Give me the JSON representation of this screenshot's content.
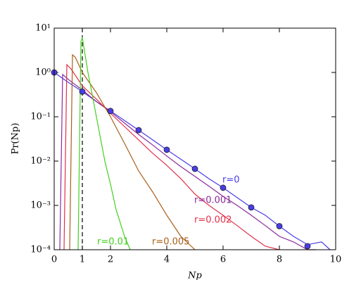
{
  "chart_data": {
    "type": "line",
    "xlabel": "Np",
    "ylabel": "Pr(Np)",
    "xlim": [
      0,
      10
    ],
    "ylim": [
      0.0001,
      10
    ],
    "log_y": true,
    "xticks": [
      0,
      1,
      2,
      4,
      6,
      8,
      10
    ],
    "yticks": [
      {
        "value": 0.0001,
        "label": "10⁻⁴"
      },
      {
        "value": 0.001,
        "label": "10⁻³"
      },
      {
        "value": 0.01,
        "label": "10⁻²"
      },
      {
        "value": 0.1,
        "label": "10⁻¹"
      },
      {
        "value": 1,
        "label": "10⁰"
      },
      {
        "value": 10,
        "label": "10¹"
      }
    ],
    "vline": {
      "x": 1,
      "color": "#000000"
    },
    "series": [
      {
        "name": "r=0",
        "color": "#4a3ce8",
        "x": [
          0,
          0.5,
          1,
          1.5,
          2,
          2.5,
          3,
          3.5,
          4,
          4.5,
          5,
          5.5,
          6,
          6.5,
          7,
          7.5,
          8,
          8.5,
          9,
          9.5,
          9.8
        ],
        "values": [
          1,
          0.6,
          0.37,
          0.22,
          0.135,
          0.082,
          0.05,
          0.03,
          0.018,
          0.011,
          0.0067,
          0.004,
          0.0025,
          0.0015,
          0.0009,
          0.0006,
          0.00034,
          0.0002,
          0.00013,
          0.00015,
          0.0001
        ]
      },
      {
        "name": "r=0.001",
        "color": "#8a2a9a",
        "x": [
          0.2,
          0.3,
          0.5,
          1,
          1.5,
          2,
          2.5,
          3,
          3.5,
          4,
          4.5,
          5,
          5.5,
          6,
          6.5,
          7,
          7.5,
          8,
          8.5,
          9,
          9.3
        ],
        "values": [
          0.0001,
          0.9,
          0.7,
          0.4,
          0.22,
          0.13,
          0.072,
          0.04,
          0.023,
          0.013,
          0.0075,
          0.0045,
          0.0027,
          0.0016,
          0.001,
          0.0006,
          0.00035,
          0.0002,
          0.00015,
          0.0001,
          0.0001
        ]
      },
      {
        "name": "r=0.002",
        "color": "#e0304a",
        "x": [
          0.35,
          0.45,
          0.6,
          1,
          1.5,
          2,
          2.5,
          3,
          3.5,
          4,
          4.5,
          5,
          5.5,
          6,
          6.5,
          7,
          7.5,
          8
        ],
        "values": [
          0.0001,
          1.5,
          1.2,
          0.5,
          0.25,
          0.12,
          0.06,
          0.03,
          0.015,
          0.008,
          0.004,
          0.0018,
          0.001,
          0.0006,
          0.00035,
          0.0002,
          0.00012,
          0.0001
        ]
      },
      {
        "name": "r=0.005",
        "color": "#a8601a",
        "x": [
          0.55,
          0.65,
          0.75,
          1,
          1.5,
          2,
          2.5,
          3,
          3.5,
          4,
          4.5,
          5
        ],
        "values": [
          0.0001,
          2.5,
          2.2,
          1,
          0.35,
          0.1,
          0.025,
          0.006,
          0.002,
          0.0006,
          0.0002,
          0.0001
        ]
      },
      {
        "name": "r=0.01",
        "color": "#44d020",
        "x": [
          0.85,
          0.95,
          1,
          1.2,
          1.5,
          1.8,
          2,
          2.2,
          2.5,
          2.7
        ],
        "values": [
          0.0001,
          5,
          6,
          1,
          0.1,
          0.01,
          0.003,
          0.0008,
          0.0002,
          0.0001
        ]
      }
    ],
    "points": {
      "color": "#4a3ce8",
      "x": [
        0,
        1,
        2,
        3,
        4,
        5,
        6,
        7,
        8,
        9
      ],
      "values": [
        1,
        0.37,
        0.135,
        0.05,
        0.018,
        0.0067,
        0.0025,
        0.0009,
        0.00034,
        0.00012
      ]
    }
  }
}
